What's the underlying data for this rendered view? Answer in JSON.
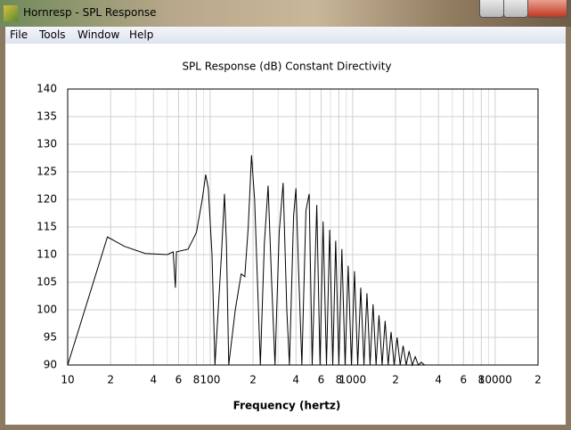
{
  "window": {
    "title": "Hornresp - SPL Response"
  },
  "menu": [
    "File",
    "Tools",
    "Window",
    "Help"
  ],
  "chart_data": {
    "type": "line",
    "title": "SPL Response (dB)   Constant Directivity",
    "x_label": "Frequency (hertz)",
    "xlim": [
      10,
      20000
    ],
    "log_x": true,
    "xticks": [
      10,
      {
        "value": 20,
        "label": "2"
      },
      {
        "value": 40,
        "label": "4"
      },
      {
        "value": 60,
        "label": "6"
      },
      {
        "value": 80,
        "label": "8"
      },
      100,
      {
        "value": 200,
        "label": "2"
      },
      {
        "value": 400,
        "label": "4"
      },
      {
        "value": 600,
        "label": "6"
      },
      {
        "value": 800,
        "label": "8"
      },
      1000,
      {
        "value": 2000,
        "label": "2"
      },
      {
        "value": 4000,
        "label": "4"
      },
      {
        "value": 6000,
        "label": "6"
      },
      {
        "value": 8000,
        "label": "8"
      },
      10000,
      {
        "value": 20000,
        "label": "2"
      }
    ],
    "xminor": [
      30,
      50,
      70,
      90,
      300,
      500,
      700,
      900,
      3000,
      5000,
      7000,
      9000
    ],
    "ylim": [
      90,
      140
    ],
    "yticks": [
      90,
      95,
      100,
      105,
      110,
      115,
      120,
      125,
      130,
      135,
      140
    ],
    "grid": true,
    "x": [
      10,
      19,
      25,
      35,
      50,
      55,
      57,
      58,
      70,
      80,
      88,
      93,
      97,
      103,
      108,
      120,
      126,
      130,
      135,
      150,
      165,
      175,
      185,
      195,
      205,
      225,
      240,
      255,
      270,
      285,
      305,
      325,
      345,
      360,
      385,
      400,
      420,
      440,
      470,
      495,
      520,
      560,
      590,
      620,
      655,
      690,
      725,
      760,
      800,
      840,
      885,
      930,
      980,
      1030,
      1085,
      1140,
      1200,
      1260,
      1325,
      1390,
      1460,
      1530,
      1610,
      1690,
      1775,
      1860,
      1955,
      2050,
      2155,
      2260,
      2375,
      2490,
      2620,
      2750,
      2890,
      3030,
      3200
    ],
    "series": [
      {
        "color": "#000000",
        "values": [
          90,
          113.2,
          111.5,
          110.2,
          110,
          110.5,
          104,
          110.5,
          111,
          114,
          120,
          124.5,
          122,
          110,
          90,
          110,
          121,
          112,
          90,
          100,
          106.5,
          106,
          115,
          128,
          120,
          90,
          112,
          122.5,
          105,
          90,
          114,
          123,
          100,
          90,
          117,
          122,
          105,
          90,
          118,
          121,
          90,
          119,
          90,
          116,
          90,
          114.5,
          90,
          112.5,
          90,
          111,
          90,
          108,
          90,
          107,
          90,
          104,
          90,
          103,
          90,
          101,
          90,
          99,
          90,
          98,
          90,
          96,
          90,
          95,
          90,
          93.5,
          90,
          92.5,
          90,
          91.5,
          90,
          90.5,
          90
        ]
      }
    ]
  }
}
